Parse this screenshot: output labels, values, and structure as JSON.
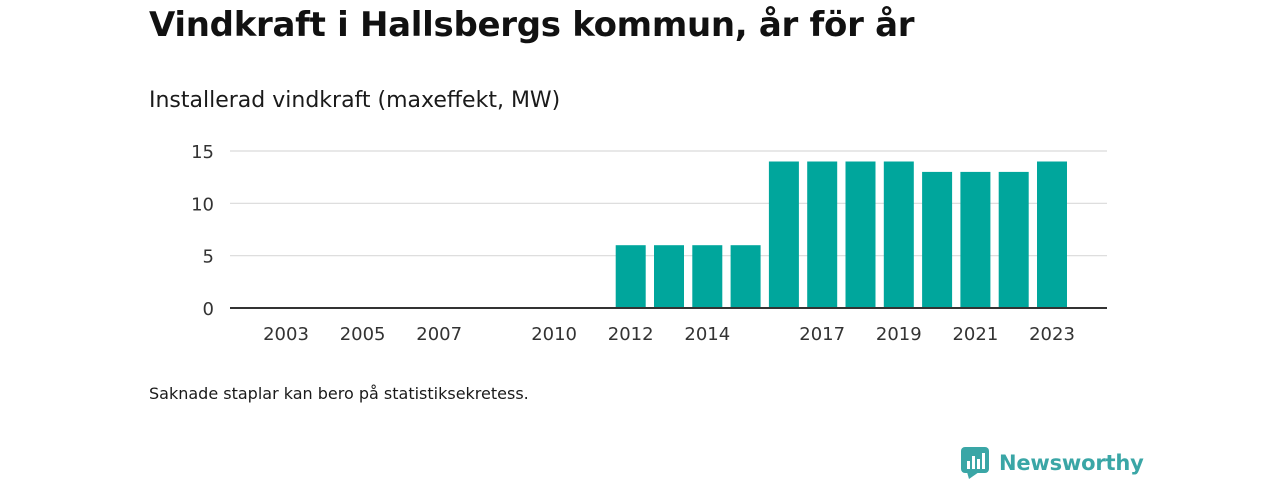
{
  "header": {
    "title": "Vindkraft i Hallsbergs kommun, år för år",
    "subtitle": "Installerad vindkraft (maxeffekt, MW)"
  },
  "footer": {
    "note": "Saknade staplar kan bero på statistiksekretess.",
    "brand": "Newsworthy"
  },
  "colors": {
    "bar": "#00a69c",
    "grid": "#d9d9d9",
    "axis": "#333333",
    "brand": "#3aa6a6"
  },
  "chart_data": {
    "type": "bar",
    "title": "Installerad vindkraft (maxeffekt, MW)",
    "xlabel": "",
    "ylabel": "",
    "x": [
      2003,
      2004,
      2005,
      2006,
      2007,
      2008,
      2009,
      2010,
      2011,
      2012,
      2013,
      2014,
      2015,
      2016,
      2017,
      2018,
      2019,
      2020,
      2021,
      2022,
      2023
    ],
    "values": [
      null,
      null,
      null,
      null,
      null,
      null,
      null,
      null,
      null,
      6,
      6,
      6,
      6,
      14,
      14,
      14,
      14,
      13,
      13,
      13,
      14
    ],
    "x_tick_labels": [
      "2003",
      "2005",
      "2007",
      "2010",
      "2012",
      "2014",
      "2017",
      "2019",
      "2021",
      "2023"
    ],
    "x_tick_values": [
      2003,
      2005,
      2007,
      2010,
      2012,
      2014,
      2017,
      2019,
      2021,
      2023
    ],
    "y_ticks": [
      0,
      5,
      10,
      15
    ],
    "ylim": [
      0,
      15
    ],
    "xlim": [
      2002,
      2024
    ],
    "grid": true,
    "legend": "none"
  }
}
